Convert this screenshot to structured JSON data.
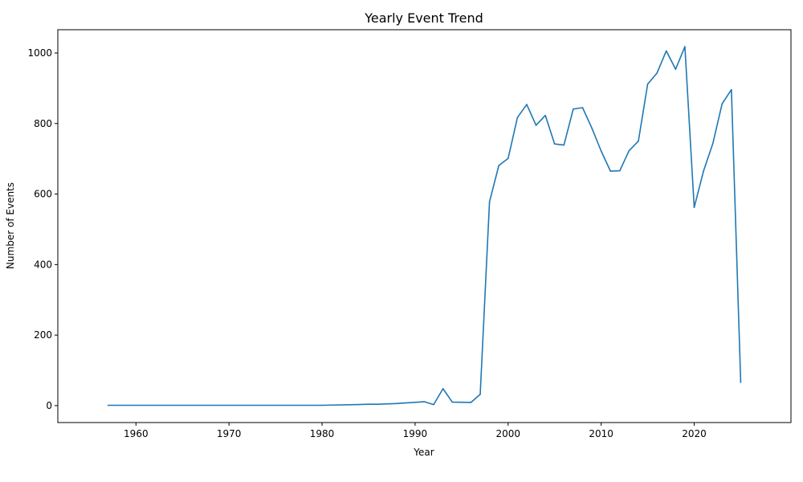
{
  "chart_data": {
    "type": "line",
    "title": "Yearly Event Trend",
    "xlabel": "Year",
    "ylabel": "Number of Events",
    "xlim": [
      1951.6,
      2030.4
    ],
    "ylim": [
      -48,
      1066
    ],
    "xticks": [
      1960,
      1970,
      1980,
      1990,
      2000,
      2010,
      2020
    ],
    "yticks": [
      0,
      200,
      400,
      600,
      800,
      1000
    ],
    "grid": false,
    "legend": "none",
    "series": [
      {
        "color": "#1f77b4",
        "x": [
          1957,
          1980,
          1984,
          1985,
          1986,
          1988,
          1991,
          1992,
          1993,
          1994,
          1996,
          1997,
          1998,
          1999,
          2000,
          2001,
          2002,
          2003,
          2004,
          2005,
          2006,
          2007,
          2008,
          2009,
          2010,
          2011,
          2012,
          2013,
          2014,
          2015,
          2016,
          2017,
          2018,
          2019,
          2020,
          2021,
          2022,
          2023,
          2024,
          2025
        ],
        "values": [
          1,
          1,
          3,
          4,
          4,
          6,
          11,
          3,
          48,
          10,
          9,
          32,
          578,
          681,
          701,
          817,
          854,
          795,
          823,
          742,
          739,
          841,
          845,
          787,
          722,
          665,
          666,
          723,
          750,
          912,
          943,
          1006,
          954,
          1018,
          562,
          665,
          743,
          856,
          896,
          66
        ]
      }
    ]
  }
}
